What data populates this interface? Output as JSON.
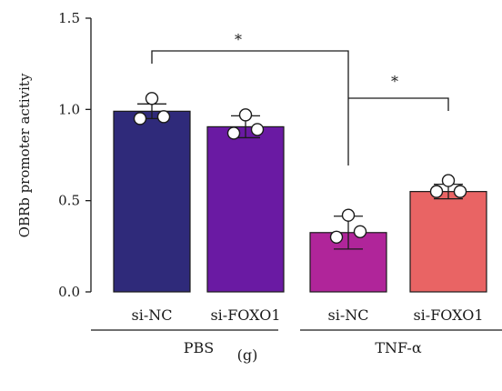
{
  "chart_data": {
    "type": "bar",
    "ylabel": "OBRb promoter activity",
    "ylim": [
      0,
      1.5
    ],
    "yticks": [
      "0.0",
      "0.5",
      "1.0",
      "1.5"
    ],
    "categories": [
      "si-NC",
      "si-FOXO1",
      "si-NC",
      "si-FOXO1"
    ],
    "groups": [
      {
        "label": "PBS",
        "categories": [
          0,
          1
        ]
      },
      {
        "label": "TNF-α",
        "categories": [
          2,
          3
        ]
      }
    ],
    "values": [
      0.99,
      0.905,
      0.325,
      0.55
    ],
    "errors": [
      0.04,
      0.06,
      0.09,
      0.04
    ],
    "points": [
      [
        1.06,
        0.95,
        0.96
      ],
      [
        0.97,
        0.87,
        0.89
      ],
      [
        0.42,
        0.3,
        0.33
      ],
      [
        0.61,
        0.55,
        0.55
      ]
    ],
    "colors": [
      "#2f2a7a",
      "#6a1aa3",
      "#b0259a",
      "#e96464"
    ],
    "significance": [
      {
        "from": 0,
        "to": 2,
        "label": "*"
      },
      {
        "from": 2,
        "to": 3,
        "label": "*"
      }
    ],
    "panel_label": "(g)"
  }
}
